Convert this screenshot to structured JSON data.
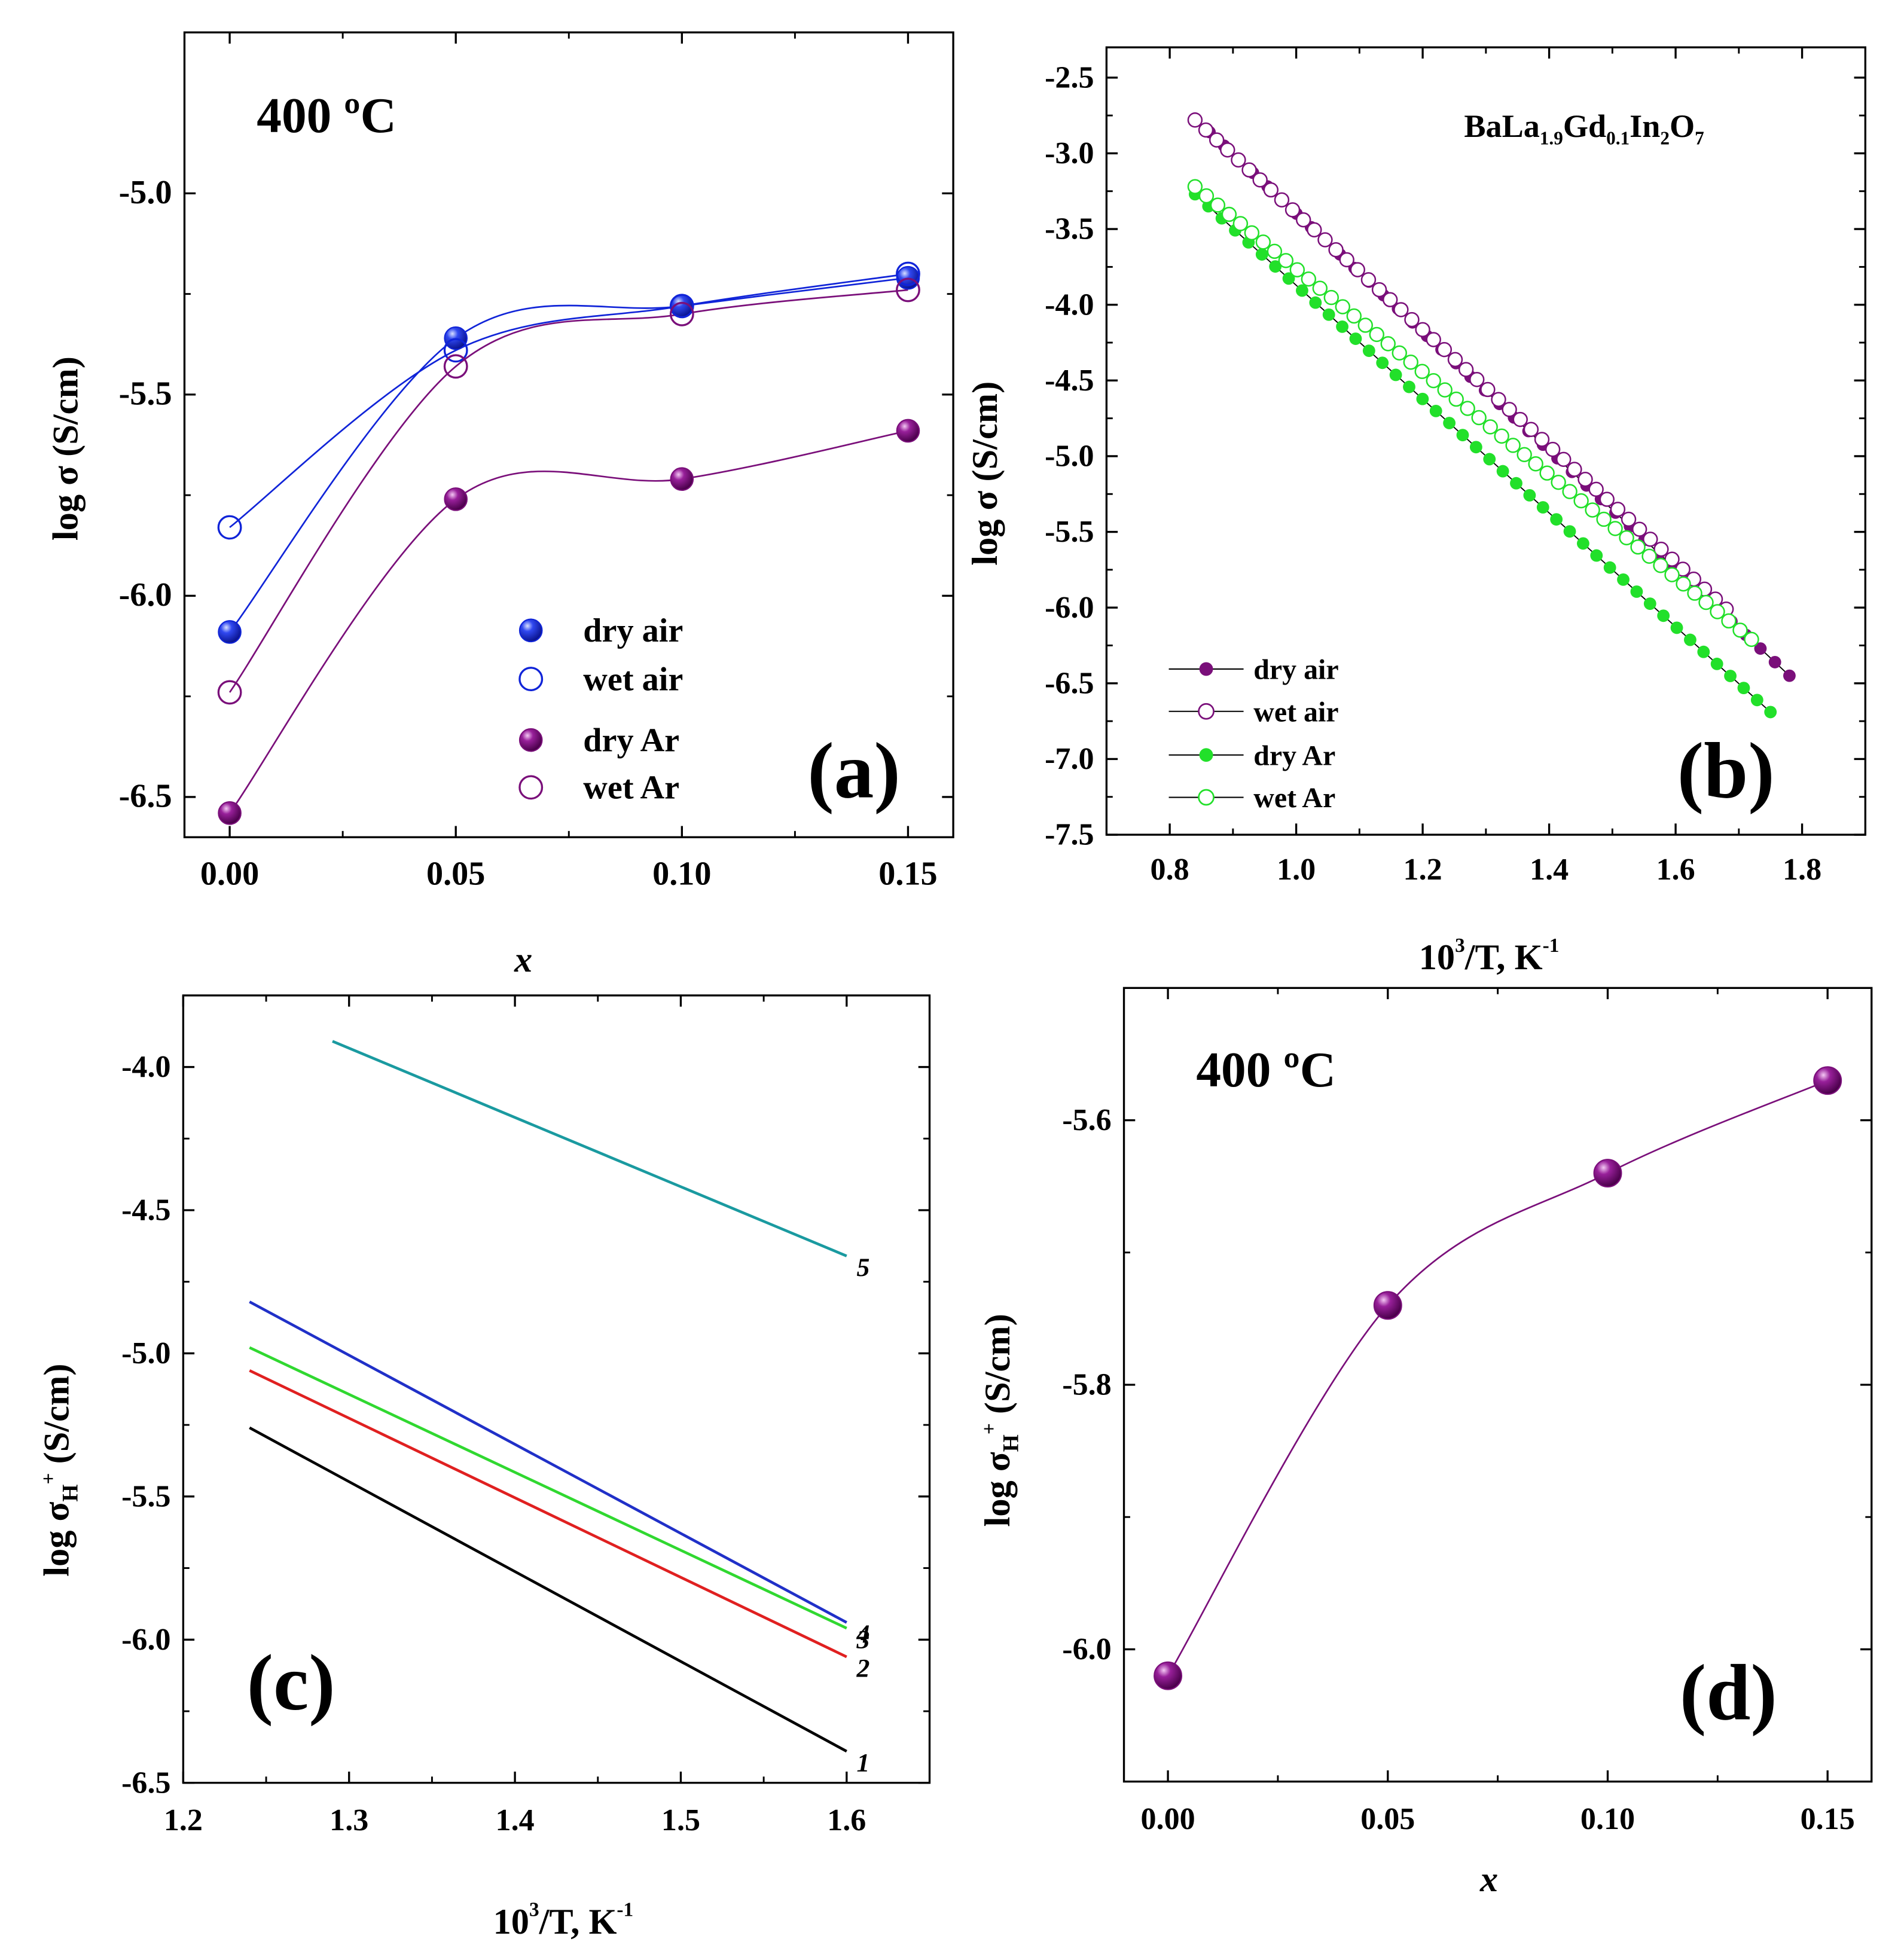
{
  "colors": {
    "blue": "#1024d8",
    "purple": "#7a0f7a",
    "green": "#22e02a",
    "black": "#000000",
    "red": "#e02020",
    "cyan": "#1a9aa0",
    "lineBlue": "#2030c8",
    "lineGreen": "#30d830"
  },
  "chart_data": [
    {
      "id": "a",
      "type": "scatter",
      "panel_label": "(a)",
      "annotation": "400 ºC",
      "xlabel": "x",
      "ylabel": "log σ (S/cm)",
      "xlim": [
        -0.01,
        0.16
      ],
      "ylim": [
        -6.6,
        -4.6
      ],
      "xticks": [
        0.0,
        0.05,
        0.1,
        0.15
      ],
      "xtick_labels": [
        "0.00",
        "0.05",
        "0.10",
        "0.15"
      ],
      "yticks": [
        -6.5,
        -6.0,
        -5.5,
        -5.0
      ],
      "ytick_labels": [
        "-6.5",
        "-6.0",
        "-5.5",
        "-5.0"
      ],
      "legend_position": "center-right",
      "x": [
        0.0,
        0.05,
        0.1,
        0.15
      ],
      "series": [
        {
          "name": "dry air",
          "values": [
            -6.09,
            -5.36,
            -5.28,
            -5.21
          ],
          "color": "blue",
          "filled": true
        },
        {
          "name": "wet air",
          "values": [
            -5.83,
            -5.39,
            -5.28,
            -5.2
          ],
          "color": "blue",
          "filled": false
        },
        {
          "name": "dry Ar",
          "values": [
            -6.54,
            -5.76,
            -5.71,
            -5.59
          ],
          "color": "purple",
          "filled": true
        },
        {
          "name": "wet Ar",
          "values": [
            -6.24,
            -5.43,
            -5.3,
            -5.24
          ],
          "color": "purple",
          "filled": false
        }
      ]
    },
    {
      "id": "b",
      "type": "scatter",
      "panel_label": "(b)",
      "annotation": "BaLa1.9Gd0.1In2O7",
      "annotation_parts": {
        "p1": "BaLa",
        "s1": "1.9",
        "p2": "Gd",
        "s2": "0.1",
        "p3": "In",
        "s3": "2",
        "p4": "O",
        "s4": "7"
      },
      "xlabel": "10³/T, K⁻¹",
      "xlabel_parts": {
        "base": "10",
        "sup1": "3",
        "mid": "/T, K",
        "sup2": "-1"
      },
      "ylabel": "log σ (S/cm)",
      "xlim": [
        0.7,
        1.9
      ],
      "ylim": [
        -7.5,
        -2.3
      ],
      "xticks": [
        0.8,
        1.0,
        1.2,
        1.4,
        1.6,
        1.8
      ],
      "xtick_labels": [
        "0.8",
        "1.0",
        "1.2",
        "1.4",
        "1.6",
        "1.8"
      ],
      "yticks": [
        -7.5,
        -7.0,
        -6.5,
        -6.0,
        -5.5,
        -5.0,
        -4.5,
        -4.0,
        -3.5,
        -3.0,
        -2.5
      ],
      "ytick_labels": [
        "-7.5",
        "-7.0",
        "-6.5",
        "-6.0",
        "-5.5",
        "-5.0",
        "-4.5",
        "-4.0",
        "-3.5",
        "-3.0",
        "-2.5"
      ],
      "legend_position": "bottom-left",
      "series": [
        {
          "name": "dry air",
          "color": "purple",
          "filled": true,
          "x_range": [
            0.84,
            1.78
          ],
          "y_range": [
            -2.77,
            -6.45
          ],
          "n": 42
        },
        {
          "name": "wet air",
          "color": "purple",
          "filled": false,
          "x_range": [
            0.84,
            1.68
          ],
          "y_range": [
            -2.78,
            -6.01
          ],
          "n": 50
        },
        {
          "name": "dry Ar",
          "color": "green",
          "filled": true,
          "x_range": [
            0.84,
            1.75
          ],
          "y_range": [
            -3.27,
            -6.69
          ],
          "n": 44
        },
        {
          "name": "wet Ar",
          "color": "green",
          "filled": false,
          "x_range": [
            0.84,
            1.72
          ],
          "y_range": [
            -3.22,
            -6.21
          ],
          "n": 50
        }
      ]
    },
    {
      "id": "c",
      "type": "line",
      "panel_label": "(c)",
      "xlabel": "10³/T, K⁻¹",
      "xlabel_parts": {
        "base": "10",
        "sup1": "3",
        "mid": "/T, K",
        "sup2": "-1"
      },
      "ylabel": "log σH⁺ (S/cm)",
      "ylabel_parts": {
        "a": "log σ",
        "sub": "H",
        "sup": "+",
        "b": " (S/cm)"
      },
      "xlim": [
        1.2,
        1.65
      ],
      "ylim": [
        -6.5,
        -3.75
      ],
      "xticks": [
        1.2,
        1.3,
        1.4,
        1.5,
        1.6
      ],
      "xtick_labels": [
        "1.2",
        "1.3",
        "1.4",
        "1.5",
        "1.6"
      ],
      "yticks": [
        -6.5,
        -6.0,
        -5.5,
        -5.0,
        -4.5,
        -4.0
      ],
      "ytick_labels": [
        "-6.5",
        "-6.0",
        "-5.5",
        "-5.0",
        "-4.5",
        "-4.0"
      ],
      "series": [
        {
          "name": "1",
          "x": [
            1.24,
            1.6
          ],
          "values": [
            -5.26,
            -6.39
          ],
          "color": "black"
        },
        {
          "name": "2",
          "x": [
            1.24,
            1.6
          ],
          "values": [
            -5.06,
            -6.06
          ],
          "color": "red"
        },
        {
          "name": "3",
          "x": [
            1.24,
            1.6
          ],
          "values": [
            -4.98,
            -5.96
          ],
          "color": "lineGreen"
        },
        {
          "name": "4",
          "x": [
            1.24,
            1.6
          ],
          "values": [
            -4.82,
            -5.94
          ],
          "color": "lineBlue"
        },
        {
          "name": "5",
          "x": [
            1.29,
            1.6
          ],
          "values": [
            -3.91,
            -4.66
          ],
          "color": "cyan"
        }
      ]
    },
    {
      "id": "d",
      "type": "scatter",
      "panel_label": "(d)",
      "annotation": "400 ºC",
      "xlabel": "x",
      "ylabel": "log σH⁺ (S/cm)",
      "ylabel_parts": {
        "a": "log σ",
        "sub": "H",
        "sup": "+",
        "b": " (S/cm)"
      },
      "xlim": [
        -0.01,
        0.16
      ],
      "ylim": [
        -6.1,
        -5.5
      ],
      "xticks": [
        0.0,
        0.05,
        0.1,
        0.15
      ],
      "xtick_labels": [
        "0.00",
        "0.05",
        "0.10",
        "0.15"
      ],
      "yticks": [
        -6.0,
        -5.8,
        -5.6
      ],
      "ytick_labels": [
        "-6.0",
        "-5.8",
        "-5.6"
      ],
      "x": [
        0.0,
        0.05,
        0.1,
        0.15
      ],
      "series": [
        {
          "name": "σH+",
          "values": [
            -6.02,
            -5.74,
            -5.64,
            -5.57
          ],
          "color": "purple"
        }
      ]
    }
  ]
}
